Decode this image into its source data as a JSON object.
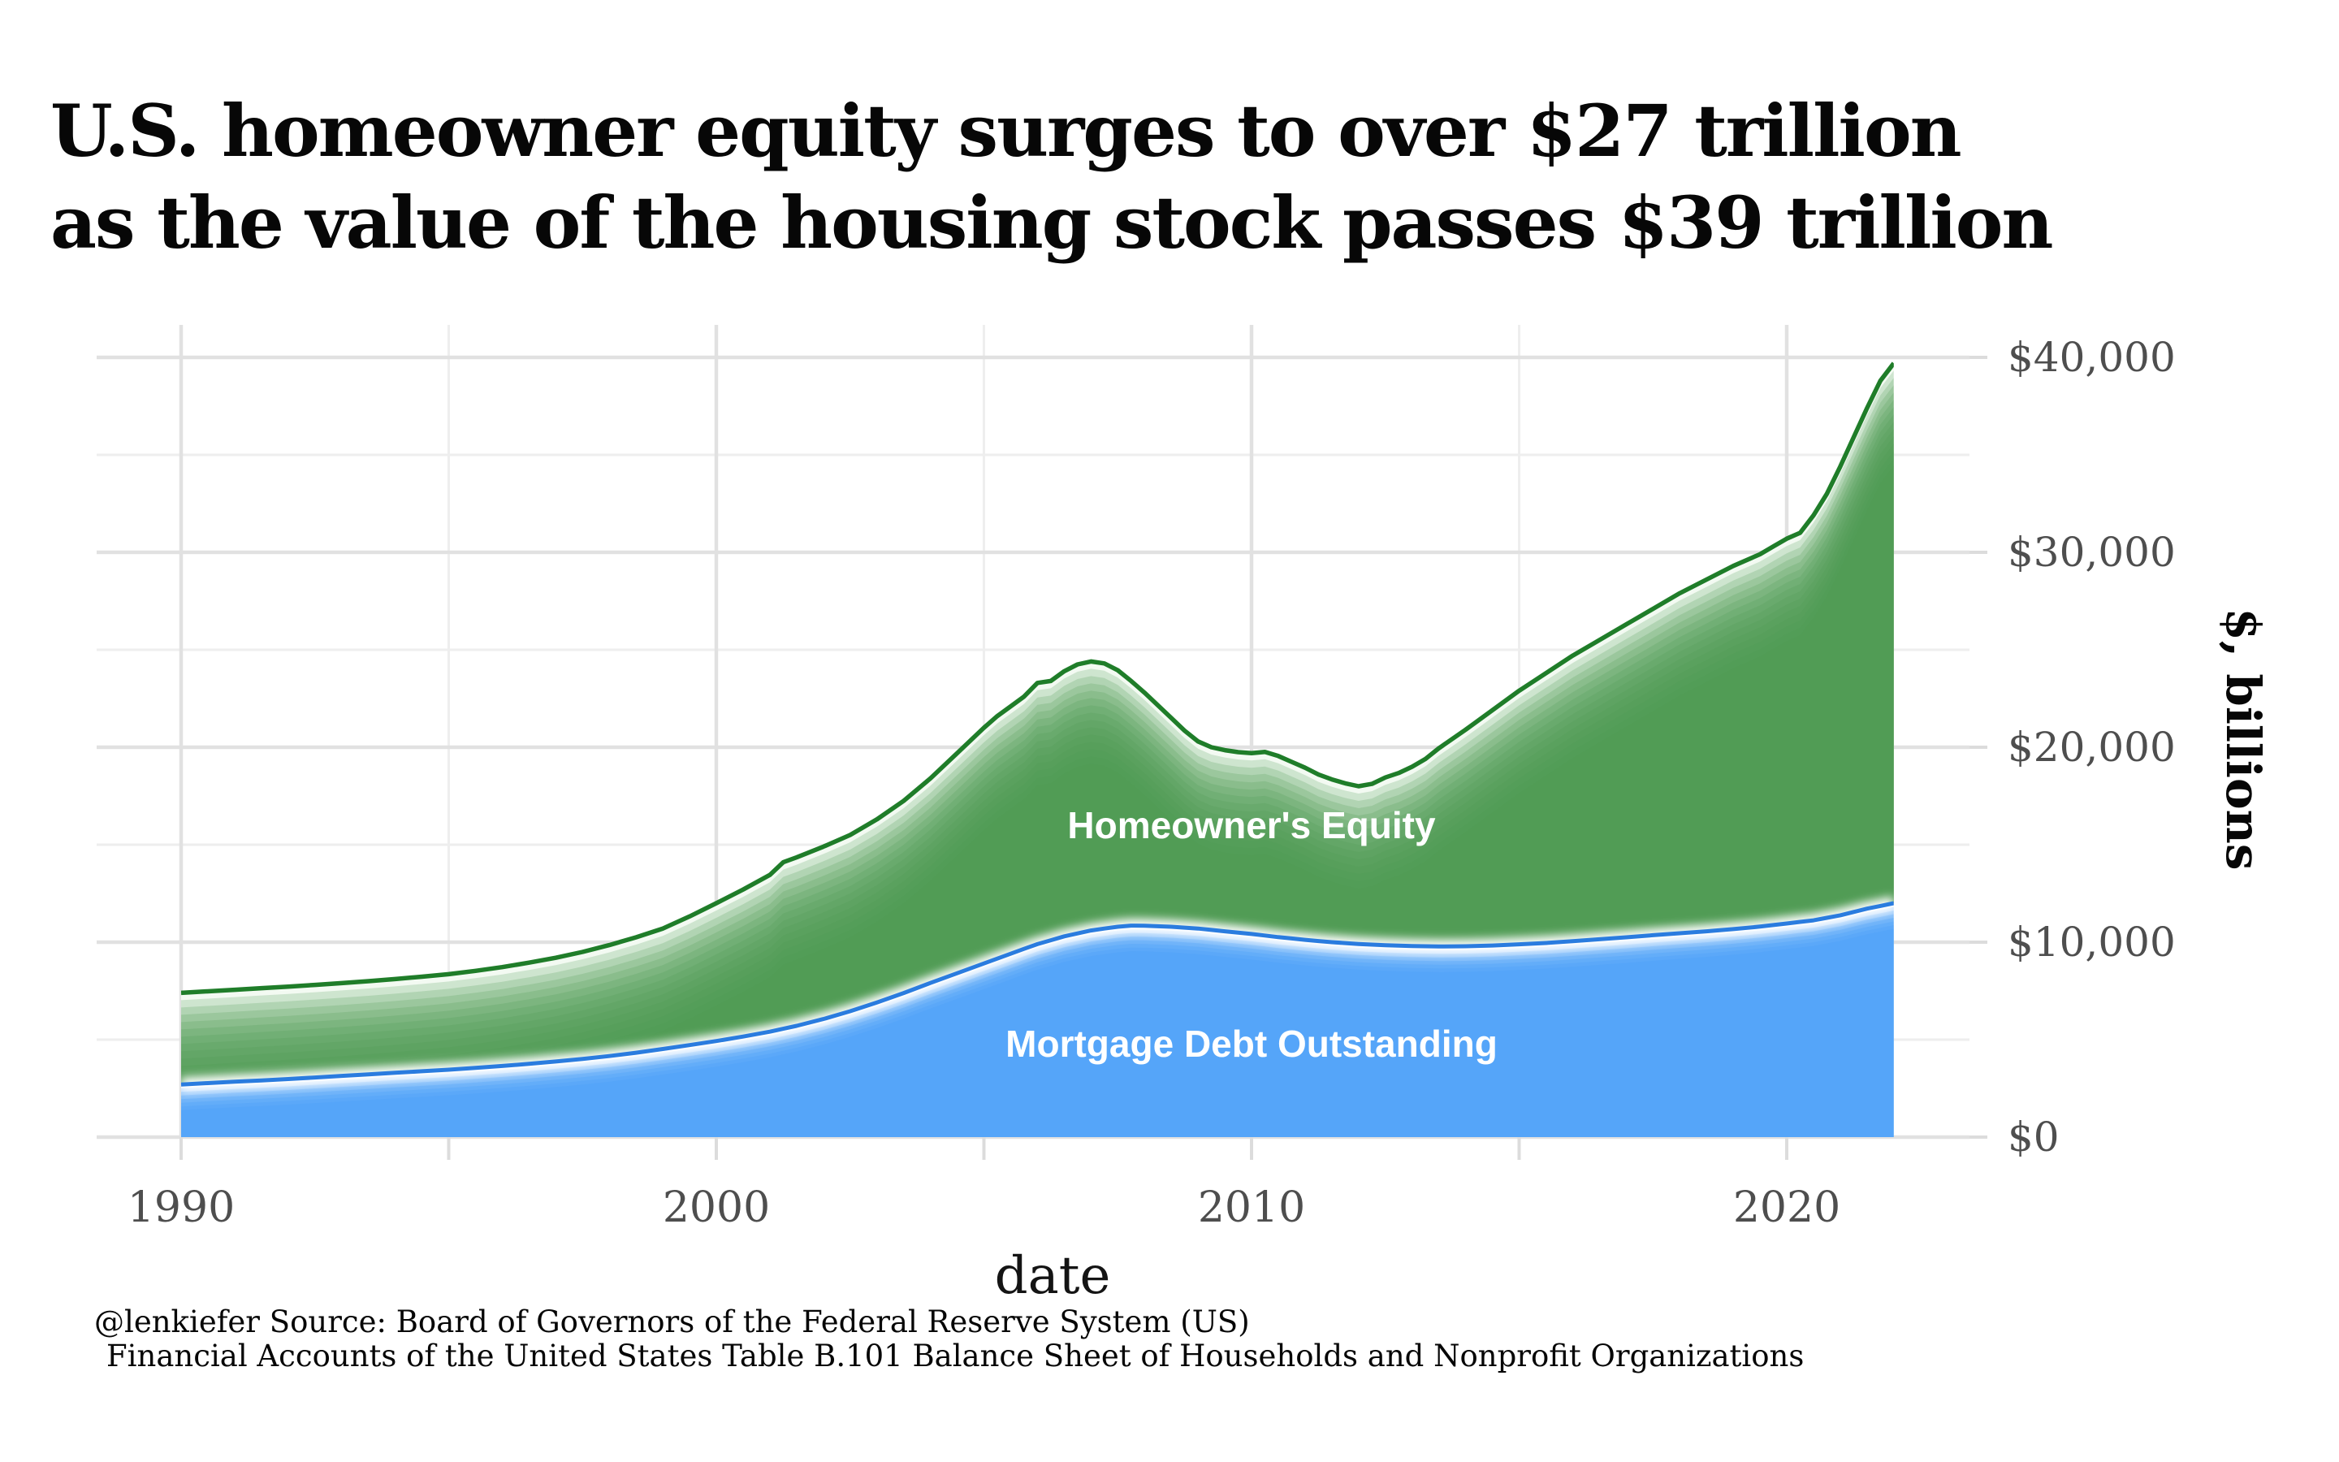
{
  "title": {
    "line1": "U.S. homeowner equity surges to over $27 trillion",
    "line2": "as the value of the housing stock passes $39 trillion"
  },
  "caption": {
    "line1": "@lenkiefer Source: Board of Governors of the Federal Reserve System (US)",
    "line2": "Financial Accounts of the United States Table B.101 Balance Sheet of Households and Nonprofit Organizations"
  },
  "chart_data": {
    "type": "area",
    "title": "U.S. homeowner equity surges to over $27 trillion as the value of the housing stock passes $39 trillion",
    "xlabel": "date",
    "ylabel": "$, billions",
    "unit": "$ billions",
    "stacked": true,
    "grid": "major and minor gray gridlines on white panel",
    "legend_position": "labels drawn inside the areas",
    "xlim": [
      1988.5,
      2025.3
    ],
    "ylim": [
      0,
      40800
    ],
    "x_major_ticks": [
      1990,
      2000,
      2010,
      2020
    ],
    "x_tick_labels": [
      "1990",
      "2000",
      "2010",
      "2020"
    ],
    "x_minor_ticks": [
      1995,
      2005,
      2015
    ],
    "y_major_ticks": [
      0,
      10000,
      20000,
      30000,
      40000
    ],
    "y_tick_labels": [
      "$0",
      "$10,000",
      "$20,000",
      "$30,000",
      "$40,000"
    ],
    "y_minor_ticks": [
      5000,
      15000,
      25000,
      35000
    ],
    "x": [
      1990,
      1990.5,
      1991,
      1991.5,
      1992,
      1992.5,
      1993,
      1993.5,
      1994,
      1994.5,
      1995,
      1995.5,
      1996,
      1996.5,
      1997,
      1997.5,
      1998,
      1998.5,
      1999,
      1999.5,
      2000,
      2000.5,
      2001,
      2001.25,
      2001.5,
      2002,
      2002.5,
      2003,
      2003.5,
      2004,
      2004.5,
      2005,
      2005.25,
      2005.5,
      2005.75,
      2006,
      2006.25,
      2006.5,
      2006.75,
      2007,
      2007.25,
      2007.5,
      2007.75,
      2008,
      2008.25,
      2008.5,
      2008.75,
      2009,
      2009.25,
      2009.5,
      2009.75,
      2010,
      2010.25,
      2010.5,
      2010.75,
      2011,
      2011.25,
      2011.5,
      2011.75,
      2012,
      2012.25,
      2012.5,
      2012.75,
      2013,
      2013.25,
      2013.5,
      2014,
      2014.5,
      2015,
      2015.5,
      2016,
      2016.5,
      2017,
      2017.5,
      2018,
      2018.5,
      2019,
      2019.5,
      2019.75,
      2020,
      2020.25,
      2020.5,
      2020.75,
      2021,
      2021.25,
      2021.5,
      2021.75,
      2022
    ],
    "series": [
      {
        "name": "Mortgage Debt Outstanding",
        "line_color": "#2a7cdf",
        "fill_color": "#4aa0f8",
        "values": [
          2700,
          2770,
          2840,
          2910,
          2980,
          3060,
          3140,
          3220,
          3300,
          3380,
          3460,
          3550,
          3650,
          3760,
          3880,
          4010,
          4160,
          4330,
          4520,
          4720,
          4930,
          5160,
          5410,
          5560,
          5710,
          6060,
          6460,
          6910,
          7390,
          7910,
          8410,
          8910,
          9160,
          9410,
          9660,
          9900,
          10100,
          10300,
          10450,
          10600,
          10700,
          10790,
          10850,
          10840,
          10815,
          10790,
          10745,
          10700,
          10630,
          10560,
          10490,
          10420,
          10340,
          10260,
          10190,
          10120,
          10060,
          10000,
          9955,
          9910,
          9875,
          9840,
          9820,
          9800,
          9790,
          9780,
          9790,
          9830,
          9890,
          9960,
          10050,
          10150,
          10250,
          10360,
          10460,
          10560,
          10670,
          10800,
          10880,
          10960,
          11040,
          11120,
          11250,
          11380,
          11550,
          11720,
          11860,
          12000
        ]
      },
      {
        "name": "Homeowner's Equity",
        "line_color": "#1f7d29",
        "fill_color": "#4f9a50",
        "values": [
          4700,
          4710,
          4720,
          4730,
          4740,
          4750,
          4760,
          4780,
          4810,
          4850,
          4900,
          4980,
          5070,
          5190,
          5320,
          5490,
          5690,
          5920,
          6180,
          6600,
          7070,
          7540,
          8040,
          8540,
          8640,
          8840,
          9040,
          9390,
          9860,
          10490,
          11290,
          12090,
          12440,
          12690,
          12940,
          13400,
          13300,
          13600,
          13800,
          13800,
          13600,
          13160,
          12550,
          11960,
          11335,
          10710,
          10105,
          9600,
          9370,
          9290,
          9260,
          9280,
          9420,
          9290,
          9060,
          8830,
          8540,
          8350,
          8195,
          8090,
          8245,
          8610,
          8860,
          9200,
          9610,
          10170,
          11110,
          12070,
          13010,
          13840,
          14650,
          15350,
          16050,
          16740,
          17440,
          18040,
          18630,
          19100,
          19420,
          19740,
          19960,
          20780,
          21750,
          23020,
          24350,
          25680,
          26940,
          27700
        ]
      }
    ],
    "annotations": [
      {
        "text": "Homeowner's Equity",
        "x": 2010,
        "y": 16000,
        "color": "#ffffff"
      },
      {
        "text": "Mortgage Debt Outstanding",
        "x": 2010,
        "y": 4800,
        "color": "#ffffff"
      }
    ],
    "colors": {
      "equity_fill": "#4f9a50",
      "equity_line": "#1f7d29",
      "mortgage_fill": "#4aa0f8",
      "mortgage_line": "#2a7cdf",
      "halo": "#ffffff",
      "grid_major": "#e1e1e1",
      "grid_minor": "#eeeeee",
      "tick_mark": "#dcdcdc",
      "tick_text": "#4e4e4e",
      "background": "#ffffff"
    }
  }
}
